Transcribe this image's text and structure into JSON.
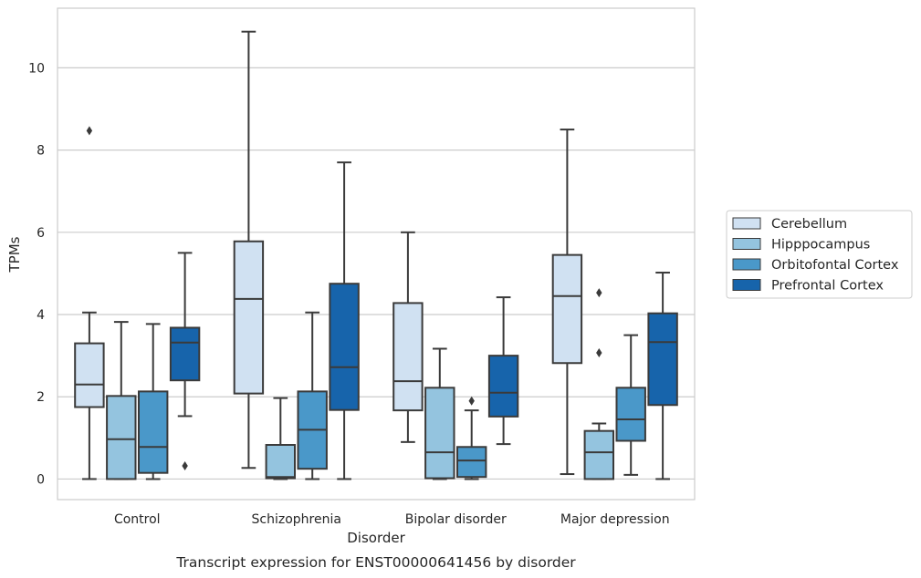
{
  "caption": "Transcript expression for ENST00000641456 by disorder",
  "chart_data": {
    "type": "box",
    "title": "",
    "xlabel": "Disorder",
    "ylabel": "TPMs",
    "ylim": [
      -0.5,
      11.45
    ],
    "yticks": [
      0,
      2,
      4,
      6,
      8,
      10
    ],
    "grid": "horizontal",
    "legend_position": "right",
    "categories": [
      "Control",
      "Schizophrenia",
      "Bipolar disorder",
      "Major depression"
    ],
    "series": [
      {
        "name": "Cerebellum",
        "color": "#d0e1f2",
        "boxes": [
          {
            "whisker_low": 0.0,
            "q1": 1.75,
            "median": 2.3,
            "q3": 3.3,
            "whisker_high": 4.05,
            "outliers": [
              8.47
            ]
          },
          {
            "whisker_low": 0.27,
            "q1": 2.08,
            "median": 4.38,
            "q3": 5.78,
            "whisker_high": 10.88,
            "outliers": []
          },
          {
            "whisker_low": 0.9,
            "q1": 1.67,
            "median": 2.38,
            "q3": 4.28,
            "whisker_high": 6.0,
            "outliers": []
          },
          {
            "whisker_low": 0.12,
            "q1": 2.82,
            "median": 4.45,
            "q3": 5.45,
            "whisker_high": 8.5,
            "outliers": []
          }
        ]
      },
      {
        "name": "Hipppocampus",
        "color": "#94c4df",
        "boxes": [
          {
            "whisker_low": 0.0,
            "q1": 0.0,
            "median": 0.97,
            "q3": 2.02,
            "whisker_high": 3.82,
            "outliers": []
          },
          {
            "whisker_low": 0.0,
            "q1": 0.02,
            "median": 0.05,
            "q3": 0.83,
            "whisker_high": 1.97,
            "outliers": []
          },
          {
            "whisker_low": 0.0,
            "q1": 0.02,
            "median": 0.65,
            "q3": 2.22,
            "whisker_high": 3.17,
            "outliers": []
          },
          {
            "whisker_low": 0.0,
            "q1": 0.0,
            "median": 0.65,
            "q3": 1.17,
            "whisker_high": 1.35,
            "outliers": [
              4.53,
              3.07
            ]
          }
        ]
      },
      {
        "name": "Orbitofontal Cortex",
        "color": "#4a98c9",
        "boxes": [
          {
            "whisker_low": 0.0,
            "q1": 0.15,
            "median": 0.78,
            "q3": 2.13,
            "whisker_high": 3.77,
            "outliers": []
          },
          {
            "whisker_low": 0.0,
            "q1": 0.25,
            "median": 1.2,
            "q3": 2.13,
            "whisker_high": 4.05,
            "outliers": []
          },
          {
            "whisker_low": 0.0,
            "q1": 0.05,
            "median": 0.45,
            "q3": 0.78,
            "whisker_high": 1.67,
            "outliers": [
              1.9
            ]
          },
          {
            "whisker_low": 0.1,
            "q1": 0.93,
            "median": 1.45,
            "q3": 2.22,
            "whisker_high": 3.5,
            "outliers": []
          }
        ]
      },
      {
        "name": "Prefrontal Cortex",
        "color": "#1764ab",
        "boxes": [
          {
            "whisker_low": 1.53,
            "q1": 2.4,
            "median": 3.32,
            "q3": 3.68,
            "whisker_high": 5.5,
            "outliers": [
              0.32
            ]
          },
          {
            "whisker_low": 0.0,
            "q1": 1.68,
            "median": 2.72,
            "q3": 4.75,
            "whisker_high": 7.7,
            "outliers": []
          },
          {
            "whisker_low": 0.85,
            "q1": 1.52,
            "median": 2.1,
            "q3": 3.0,
            "whisker_high": 4.42,
            "outliers": []
          },
          {
            "whisker_low": 0.0,
            "q1": 1.8,
            "median": 3.33,
            "q3": 4.03,
            "whisker_high": 5.02,
            "outliers": []
          }
        ]
      }
    ]
  }
}
